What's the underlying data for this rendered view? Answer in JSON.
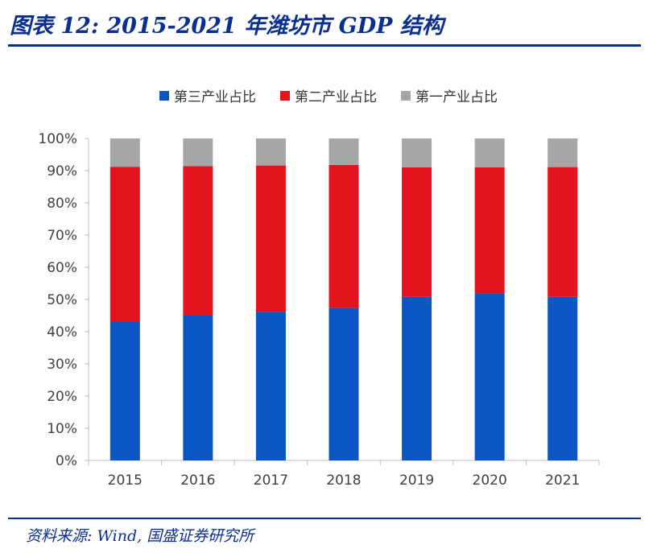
{
  "title": "图表 12: 2015-2021 年潍坊市 GDP 结构",
  "source": "资料来源: Wind, 国盛证券研究所",
  "colors": {
    "brand": "#0b2f8f",
    "tertiary": "#0a56c2",
    "secondary": "#e3141e",
    "primary": "#a6a6a6",
    "axis": "#bfbfbf",
    "text": "#404040"
  },
  "chart_data": {
    "type": "bar",
    "stacked": true,
    "categories": [
      "2015",
      "2016",
      "2017",
      "2018",
      "2019",
      "2020",
      "2021"
    ],
    "series": [
      {
        "name": "第三产业占比",
        "color": "#0a56c2",
        "values": [
          43.0,
          45.0,
          46.2,
          47.4,
          50.8,
          51.9,
          50.8
        ]
      },
      {
        "name": "第二产业占比",
        "color": "#e3141e",
        "values": [
          48.2,
          46.4,
          45.4,
          44.4,
          40.2,
          39.1,
          40.3
        ]
      },
      {
        "name": "第一产业占比",
        "color": "#a6a6a6",
        "values": [
          8.8,
          8.6,
          8.4,
          8.2,
          9.0,
          9.0,
          8.9
        ]
      }
    ],
    "ylim": [
      0,
      100
    ],
    "yticks": [
      "0%",
      "10%",
      "20%",
      "30%",
      "40%",
      "50%",
      "60%",
      "70%",
      "80%",
      "90%",
      "100%"
    ],
    "legend_position": "top",
    "grid": false
  }
}
